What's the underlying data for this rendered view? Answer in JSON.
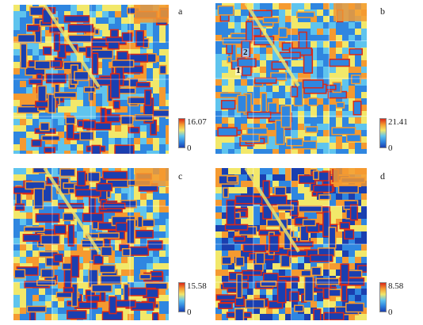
{
  "panels": [
    {
      "letter": "a",
      "max": "16.07",
      "min": "0",
      "accent": "#e85a2a"
    },
    {
      "letter": "b",
      "max": "21.41",
      "min": "0",
      "accent": "#f07a2a"
    },
    {
      "letter": "c",
      "max": "15.58",
      "min": "0",
      "accent": "#e85a2a"
    },
    {
      "letter": "d",
      "max": "8.58",
      "min": "0",
      "accent": "#d83a20"
    }
  ],
  "markers": {
    "m1": "1",
    "m2": "2"
  },
  "colormap": [
    "#1a3fb0",
    "#2f86e0",
    "#5fc4ee",
    "#f2e86a",
    "#f59a30",
    "#d8281a"
  ]
}
